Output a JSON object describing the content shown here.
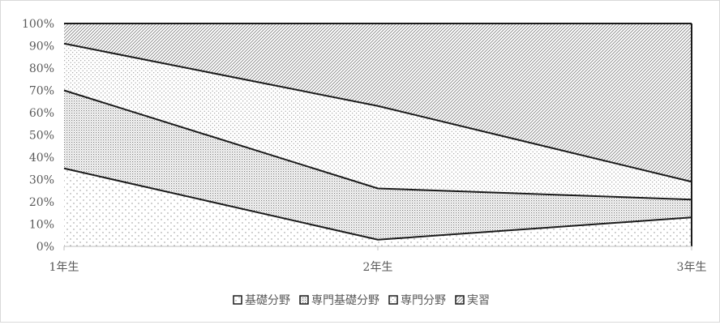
{
  "chart_data": {
    "type": "area",
    "stacked": true,
    "percent": true,
    "title": "",
    "xlabel": "",
    "ylabel": "",
    "categories": [
      "1年生",
      "2年生",
      "3年生"
    ],
    "ylim": [
      0,
      100
    ],
    "yticks": [
      "0%",
      "10%",
      "20%",
      "30%",
      "40%",
      "50%",
      "60%",
      "70%",
      "80%",
      "90%",
      "100%"
    ],
    "grid": false,
    "legend_position": "bottom",
    "series": [
      {
        "name": "基礎分野",
        "pattern": "dots-sparse",
        "values": [
          35,
          3,
          13
        ]
      },
      {
        "name": "専門基礎分野",
        "pattern": "dots-dense",
        "values": [
          35,
          23,
          8
        ]
      },
      {
        "name": "専門分野",
        "pattern": "dots-fine",
        "values": [
          21,
          37,
          8
        ]
      },
      {
        "name": "実習",
        "pattern": "diagonal-hatch",
        "values": [
          9,
          37,
          71
        ]
      }
    ],
    "colors": {
      "line": "#1a1a1a",
      "axis": "#bfbfbf",
      "text": "#595959",
      "pattern": "#7f7f7f"
    }
  }
}
